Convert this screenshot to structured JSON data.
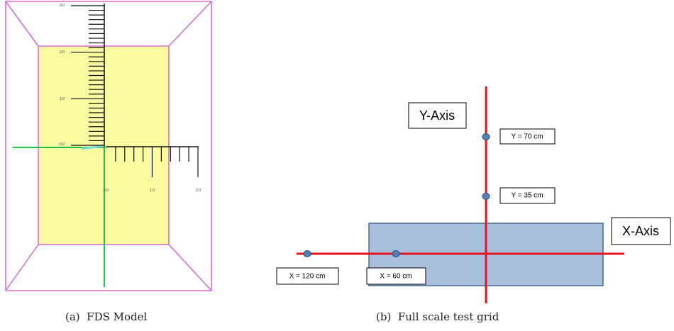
{
  "panel_a": {
    "caption": "(a)  FDS Model",
    "y_tick_labels": [
      "3.0",
      "2.0",
      "1.0",
      "0.0"
    ],
    "x_tick_labels": [
      "0.0",
      "1.0",
      "2.0"
    ]
  },
  "panel_b": {
    "caption": "(b)  Full scale test grid",
    "y_axis_label": "Y-Axis",
    "x_axis_label": "X-Axis",
    "points": [
      {
        "label": "Y = 70 cm"
      },
      {
        "label": "Y = 35 cm"
      },
      {
        "label": "X = 120 cm"
      },
      {
        "label": "X = 60 cm"
      }
    ]
  }
}
